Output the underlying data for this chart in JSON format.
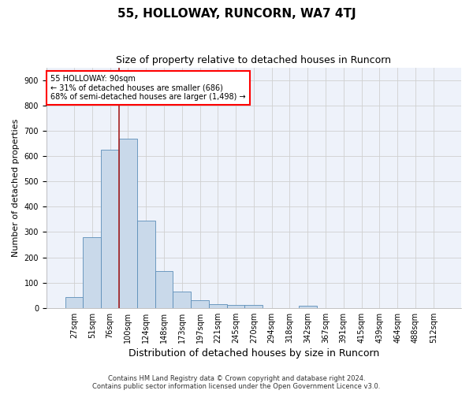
{
  "title1": "55, HOLLOWAY, RUNCORN, WA7 4TJ",
  "title2": "Size of property relative to detached houses in Runcorn",
  "xlabel": "Distribution of detached houses by size in Runcorn",
  "ylabel": "Number of detached properties",
  "categories": [
    "27sqm",
    "51sqm",
    "76sqm",
    "100sqm",
    "124sqm",
    "148sqm",
    "173sqm",
    "197sqm",
    "221sqm",
    "245sqm",
    "270sqm",
    "294sqm",
    "318sqm",
    "342sqm",
    "367sqm",
    "391sqm",
    "415sqm",
    "439sqm",
    "464sqm",
    "488sqm",
    "512sqm"
  ],
  "values": [
    42,
    280,
    625,
    670,
    345,
    145,
    65,
    30,
    15,
    12,
    12,
    0,
    0,
    10,
    0,
    0,
    0,
    0,
    0,
    0,
    0
  ],
  "bar_color": "#c9d9ea",
  "bar_edge_color": "#5b8db8",
  "annotation_label": "55 HOLLOWAY: 90sqm",
  "annotation_line1": "← 31% of detached houses are smaller (686)",
  "annotation_line2": "68% of semi-detached houses are larger (1,498) →",
  "vline_color": "#a52020",
  "grid_color": "#d0d0d0",
  "footnote1": "Contains HM Land Registry data © Crown copyright and database right 2024.",
  "footnote2": "Contains public sector information licensed under the Open Government Licence v3.0.",
  "ylim": [
    0,
    950
  ],
  "yticks": [
    0,
    100,
    200,
    300,
    400,
    500,
    600,
    700,
    800,
    900
  ],
  "title1_fontsize": 11,
  "title2_fontsize": 9,
  "xlabel_fontsize": 9,
  "ylabel_fontsize": 8,
  "tick_fontsize": 7,
  "footnote_fontsize": 6,
  "bg_color": "#eef2fa"
}
